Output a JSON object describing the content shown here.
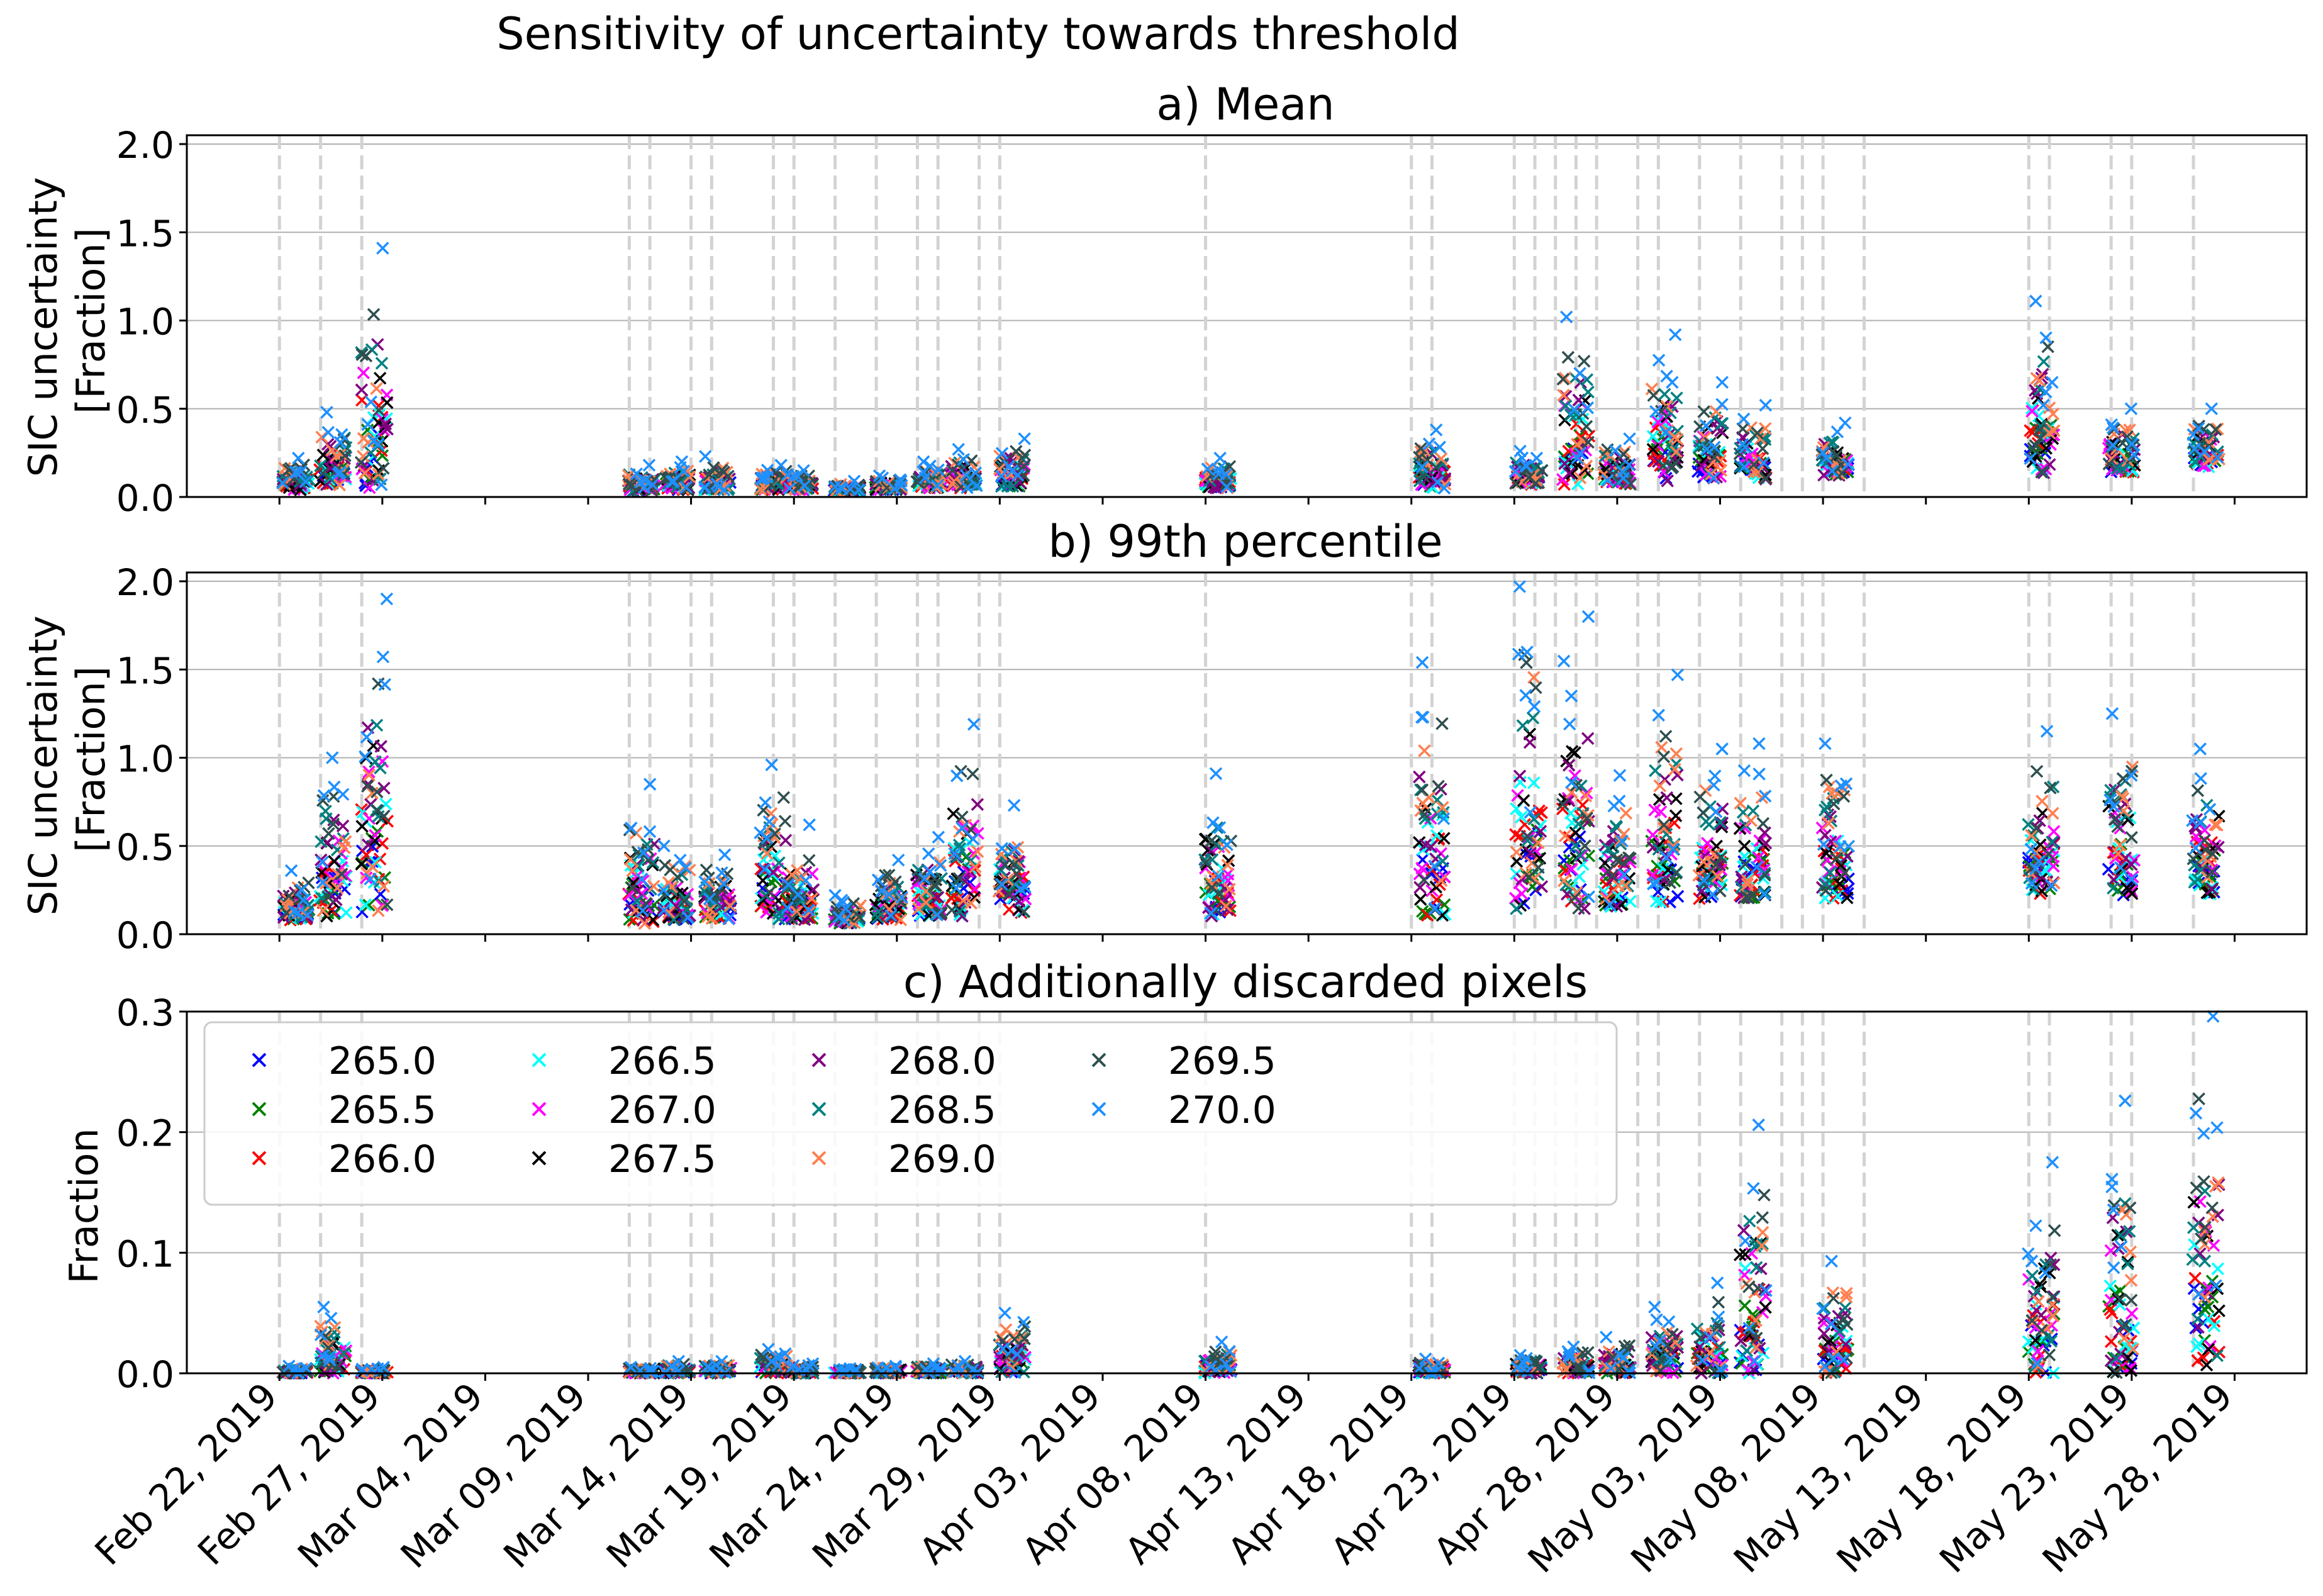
{
  "figure_title": "Sensitivity of uncertainty towards threshold",
  "x_tick_labels": [
    "Feb 22, 2019",
    "Feb 27, 2019",
    "Mar 04, 2019",
    "Mar 09, 2019",
    "Mar 14, 2019",
    "Mar 19, 2019",
    "Mar 24, 2019",
    "Mar 29, 2019",
    "Apr 03, 2019",
    "Apr 08, 2019",
    "Apr 13, 2019",
    "Apr 18, 2019",
    "Apr 23, 2019",
    "Apr 28, 2019",
    "May 03, 2019",
    "May 08, 2019",
    "May 13, 2019",
    "May 18, 2019",
    "May 23, 2019",
    "May 28, 2019"
  ],
  "legend_title_hidden": "",
  "chart_data": {
    "type": "scatter",
    "x_axis": {
      "range_days": [
        -2.5,
        100.5
      ],
      "day0": "Feb 20, 2019",
      "tick_days": [
        2,
        7,
        12,
        17,
        22,
        27,
        32,
        37,
        42,
        47,
        52,
        57,
        62,
        67,
        72,
        77,
        82,
        87,
        92,
        97
      ]
    },
    "thresholds": [
      "265.0",
      "265.5",
      "266.0",
      "266.5",
      "267.0",
      "267.5",
      "268.0",
      "268.5",
      "269.0",
      "269.5",
      "270.0"
    ],
    "series_colors": [
      "#0000ff",
      "#008000",
      "#ff0000",
      "#00ffff",
      "#ff00ff",
      "#000000",
      "#800080",
      "#008080",
      "#ff7f50",
      "#2f4f4f",
      "#1e90ff"
    ],
    "scene_days": [
      2,
      4,
      6,
      19,
      20,
      22,
      23,
      26,
      27,
      29,
      31,
      33,
      34,
      36,
      37,
      47,
      57,
      58,
      62,
      63,
      64,
      65,
      66,
      68,
      69,
      71,
      73,
      75,
      76,
      77,
      79,
      87,
      88,
      91,
      92,
      95
    ],
    "clusters": [
      {
        "day": 2.8,
        "mean": [
          0.04,
          0.22
        ],
        "p99": [
          0.08,
          0.36
        ],
        "frac": [
          0.0,
          0.006
        ]
      },
      {
        "day": 4.6,
        "mean": [
          0.06,
          0.48
        ],
        "p99": [
          0.1,
          1.0
        ],
        "frac": [
          0.0,
          0.055
        ]
      },
      {
        "day": 6.6,
        "mean": [
          0.05,
          1.41
        ],
        "p99": [
          0.1,
          1.9
        ],
        "frac": [
          0.0,
          0.005
        ]
      },
      {
        "day": 19.6,
        "mean": [
          0.03,
          0.18
        ],
        "p99": [
          0.06,
          0.85
        ],
        "frac": [
          0.0,
          0.005
        ]
      },
      {
        "day": 21.3,
        "mean": [
          0.04,
          0.2
        ],
        "p99": [
          0.08,
          0.5
        ],
        "frac": [
          0.0,
          0.01
        ]
      },
      {
        "day": 23.3,
        "mean": [
          0.04,
          0.23
        ],
        "p99": [
          0.08,
          0.45
        ],
        "frac": [
          0.0,
          0.01
        ]
      },
      {
        "day": 26.0,
        "mean": [
          0.04,
          0.18
        ],
        "p99": [
          0.08,
          0.96
        ],
        "frac": [
          0.0,
          0.02
        ]
      },
      {
        "day": 27.3,
        "mean": [
          0.04,
          0.15
        ],
        "p99": [
          0.08,
          0.62
        ],
        "frac": [
          0.0,
          0.008
        ]
      },
      {
        "day": 29.6,
        "mean": [
          0.03,
          0.09
        ],
        "p99": [
          0.06,
          0.22
        ],
        "frac": [
          0.0,
          0.004
        ]
      },
      {
        "day": 31.6,
        "mean": [
          0.04,
          0.12
        ],
        "p99": [
          0.08,
          0.42
        ],
        "frac": [
          0.0,
          0.006
        ]
      },
      {
        "day": 33.6,
        "mean": [
          0.05,
          0.2
        ],
        "p99": [
          0.1,
          0.55
        ],
        "frac": [
          0.0,
          0.008
        ]
      },
      {
        "day": 35.3,
        "mean": [
          0.05,
          0.27
        ],
        "p99": [
          0.1,
          1.19
        ],
        "frac": [
          0.0,
          0.01
        ]
      },
      {
        "day": 37.6,
        "mean": [
          0.06,
          0.33
        ],
        "p99": [
          0.12,
          0.73
        ],
        "frac": [
          0.0,
          0.05
        ]
      },
      {
        "day": 47.6,
        "mean": [
          0.05,
          0.22
        ],
        "p99": [
          0.1,
          0.91
        ],
        "frac": [
          0.0,
          0.026
        ]
      },
      {
        "day": 58.0,
        "mean": [
          0.05,
          0.38
        ],
        "p99": [
          0.1,
          1.54
        ],
        "frac": [
          0.0,
          0.012
        ]
      },
      {
        "day": 62.7,
        "mean": [
          0.07,
          0.26
        ],
        "p99": [
          0.14,
          1.97
        ],
        "frac": [
          0.0,
          0.015
        ]
      },
      {
        "day": 65.0,
        "mean": [
          0.07,
          1.02
        ],
        "p99": [
          0.14,
          1.8
        ],
        "frac": [
          0.0,
          0.022
        ]
      },
      {
        "day": 67.0,
        "mean": [
          0.07,
          0.33
        ],
        "p99": [
          0.14,
          0.9
        ],
        "frac": [
          0.0,
          0.03
        ]
      },
      {
        "day": 69.3,
        "mean": [
          0.09,
          0.92
        ],
        "p99": [
          0.18,
          1.47
        ],
        "frac": [
          0.0,
          0.055
        ]
      },
      {
        "day": 71.5,
        "mean": [
          0.1,
          0.65
        ],
        "p99": [
          0.2,
          1.05
        ],
        "frac": [
          0.0,
          0.075
        ]
      },
      {
        "day": 73.6,
        "mean": [
          0.1,
          0.52
        ],
        "p99": [
          0.2,
          1.08
        ],
        "frac": [
          0.0,
          0.206
        ]
      },
      {
        "day": 77.6,
        "mean": [
          0.12,
          0.42
        ],
        "p99": [
          0.2,
          1.08
        ],
        "frac": [
          0.0,
          0.093
        ]
      },
      {
        "day": 87.6,
        "mean": [
          0.13,
          1.11
        ],
        "p99": [
          0.22,
          1.15
        ],
        "frac": [
          0.0,
          0.175
        ]
      },
      {
        "day": 91.5,
        "mean": [
          0.14,
          0.5
        ],
        "p99": [
          0.22,
          1.25
        ],
        "frac": [
          0.0,
          0.226
        ]
      },
      {
        "day": 95.6,
        "mean": [
          0.17,
          0.5
        ],
        "p99": [
          0.22,
          1.05
        ],
        "frac": [
          0.0,
          0.296
        ]
      }
    ],
    "panels": [
      {
        "id": "mean",
        "title": "a) Mean",
        "ylabel_lines": [
          "SIC uncertainty",
          "[Fraction]"
        ],
        "ylim": [
          0.0,
          2.05
        ],
        "yticks": [
          "0.0",
          "0.5",
          "1.0",
          "1.5",
          "2.0"
        ],
        "ytick_values": [
          0.0,
          0.5,
          1.0,
          1.5,
          2.0
        ],
        "grid": true
      },
      {
        "id": "p99",
        "title": "b) 99th percentile",
        "ylabel_lines": [
          "SIC uncertainty",
          "[Fraction]"
        ],
        "ylim": [
          0.0,
          2.05
        ],
        "yticks": [
          "0.0",
          "0.5",
          "1.0",
          "1.5",
          "2.0"
        ],
        "ytick_values": [
          0.0,
          0.5,
          1.0,
          1.5,
          2.0
        ],
        "grid": true
      },
      {
        "id": "frac",
        "title": "c) Additionally discarded pixels",
        "ylabel_lines": [
          "Fraction"
        ],
        "ylim": [
          0.0,
          0.3
        ],
        "yticks": [
          "0.0",
          "0.1",
          "0.2",
          "0.3"
        ],
        "ytick_values": [
          0.0,
          0.1,
          0.2,
          0.3
        ],
        "grid": true
      }
    ],
    "legend": {
      "placement": "top-left of panel c",
      "columns": 5
    }
  }
}
